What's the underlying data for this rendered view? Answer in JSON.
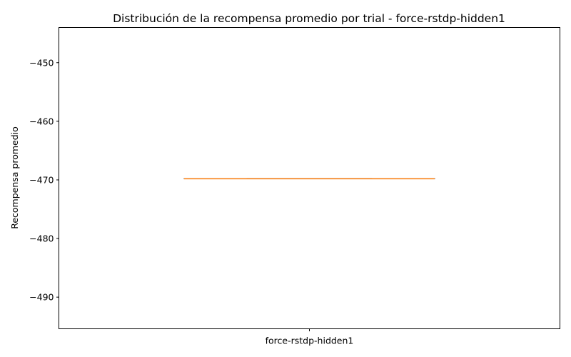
{
  "chart_data": {
    "type": "box",
    "title": "Distribución de la recompensa promedio por trial - force-rstdp-hidden1",
    "xlabel": "",
    "ylabel": "Recompensa promedio",
    "categories": [
      "force-rstdp-hidden1"
    ],
    "ylim": [
      -495.4,
      -444.0
    ],
    "yticks": [
      -450,
      -460,
      -470,
      -480,
      -490
    ],
    "ytick_labels": [
      "−450",
      "−460",
      "−470",
      "−480",
      "−490"
    ],
    "boxes": [
      {
        "category": "force-rstdp-hidden1",
        "min": -469.8,
        "q1": -469.8,
        "median": -469.8,
        "q3": -469.8,
        "max": -469.8
      }
    ],
    "grid": false,
    "colors": {
      "box": "#000000",
      "median": "#ff7f0e",
      "axes": "#000000"
    }
  }
}
